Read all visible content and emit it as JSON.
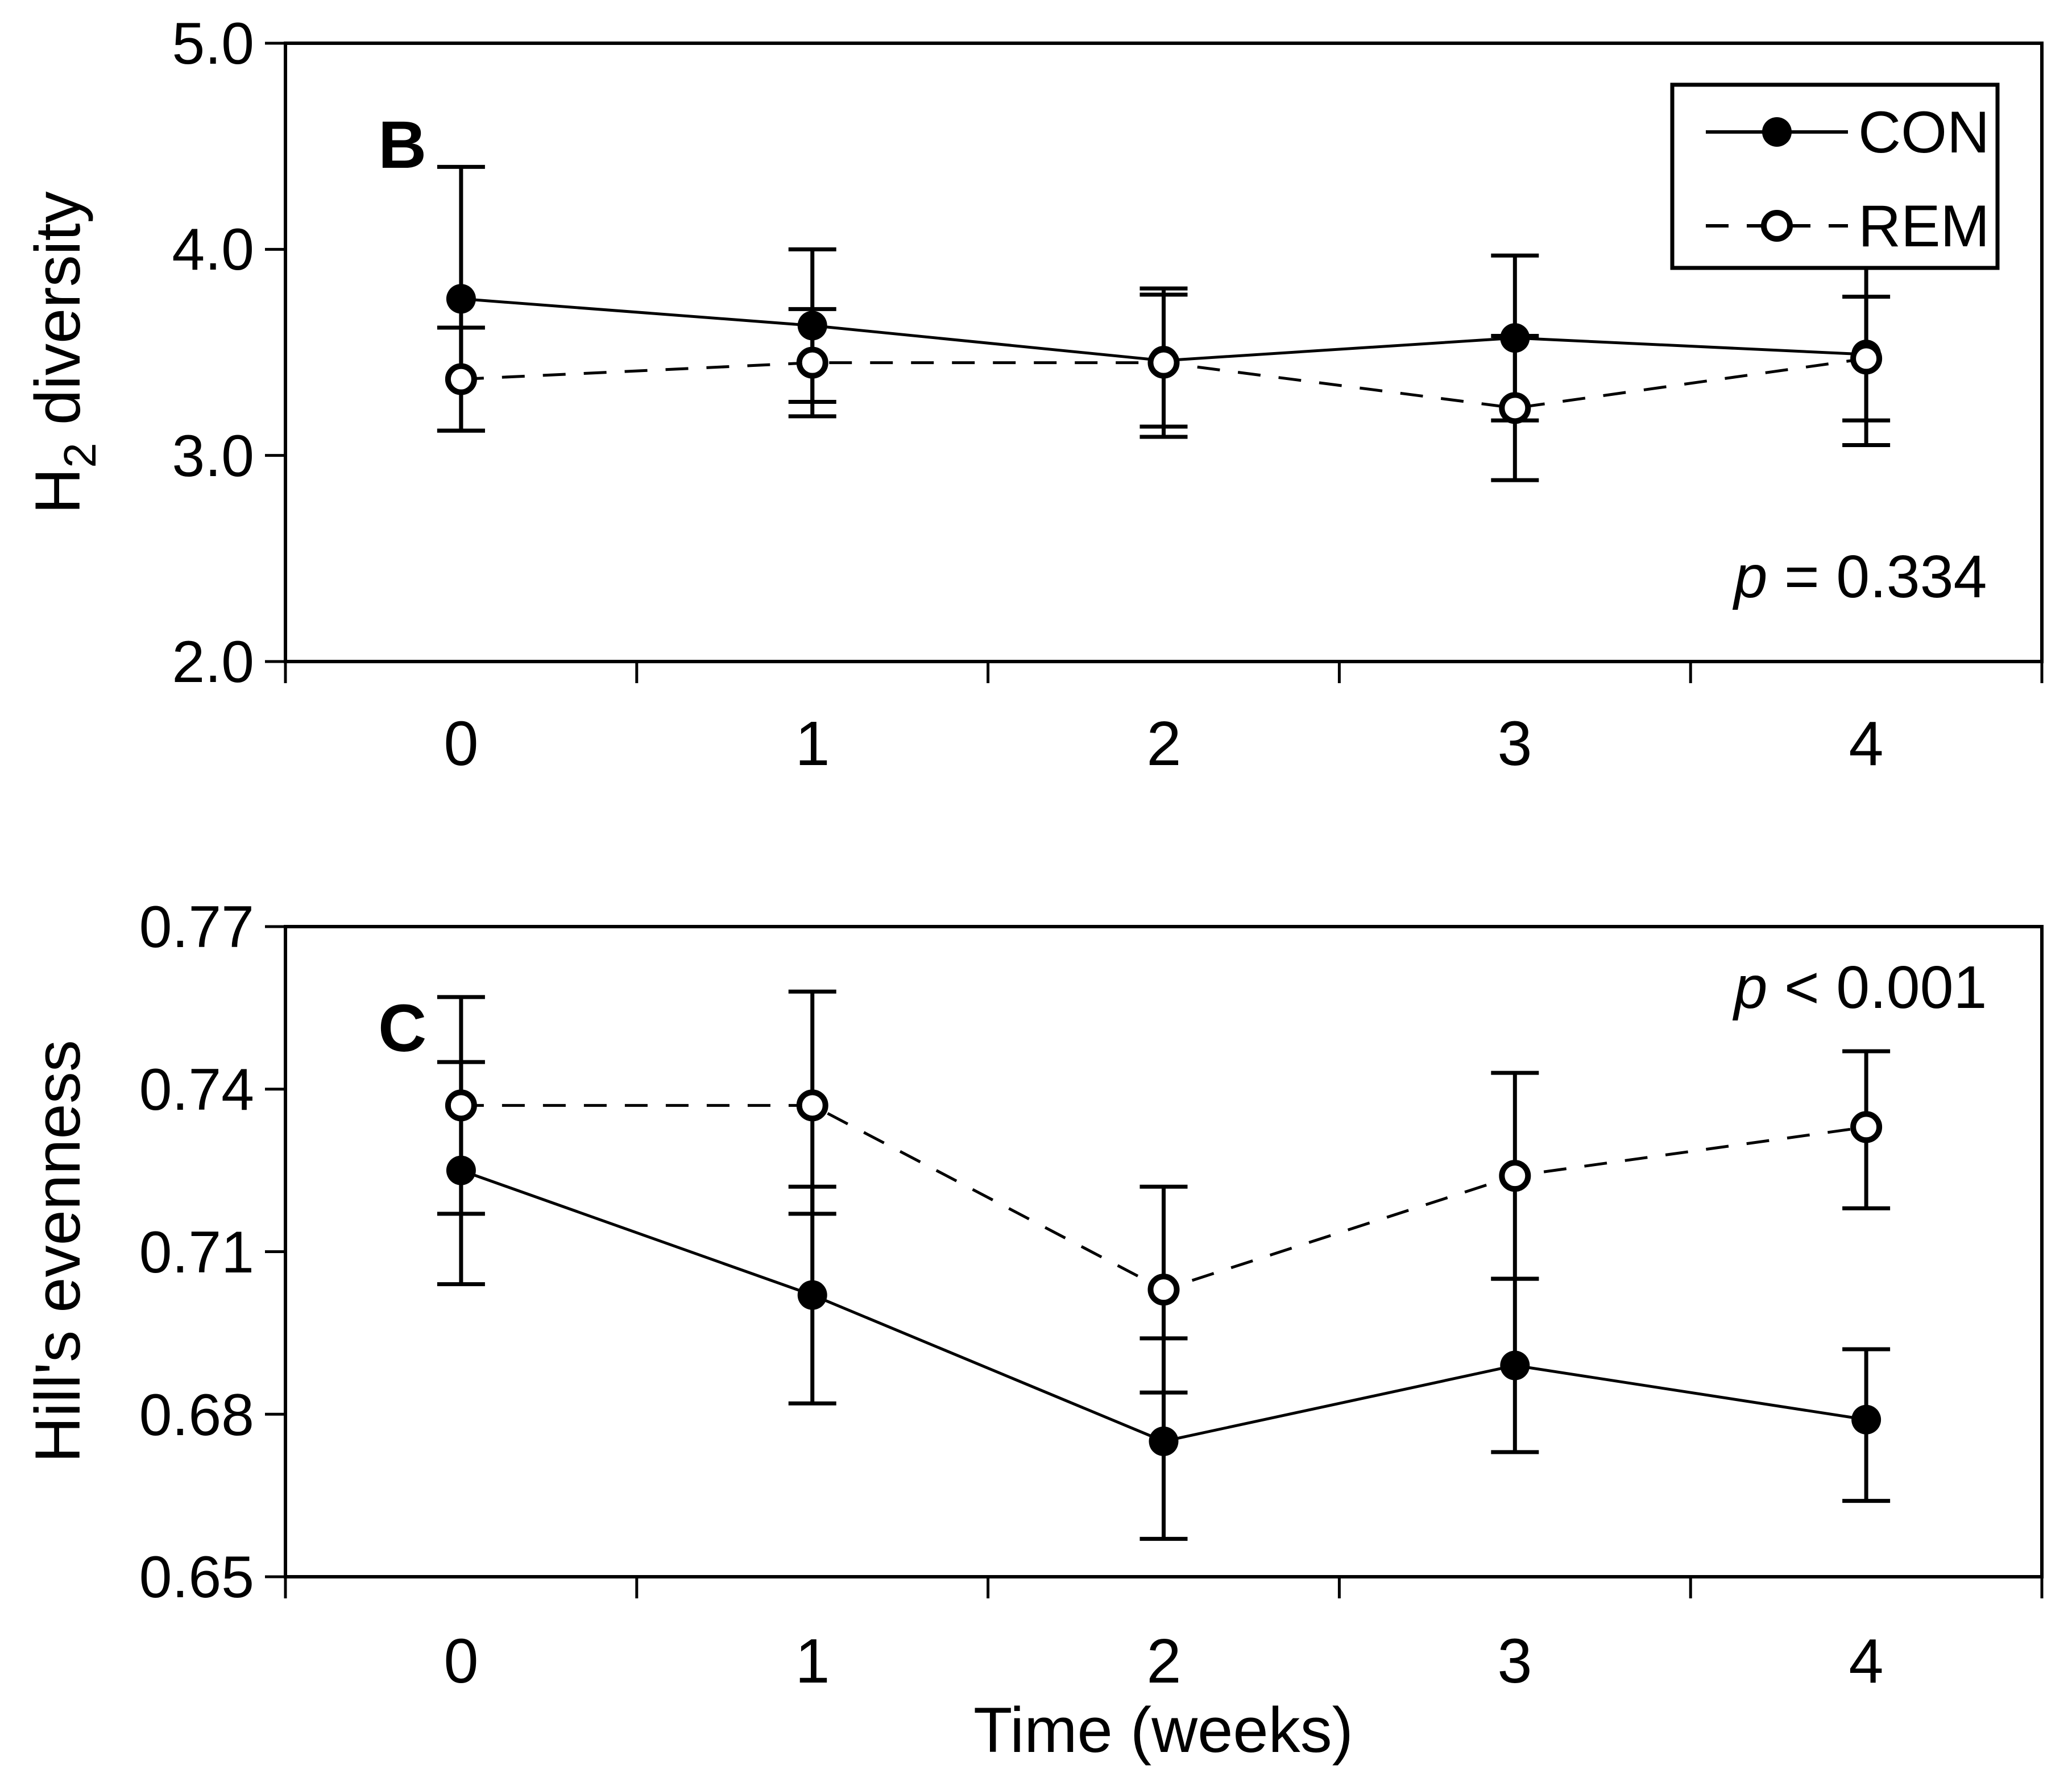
{
  "figure": {
    "background": "#ffffff",
    "foreground": "#000000",
    "panel_count": 2
  },
  "chart_data": [
    {
      "type": "line",
      "panel_label": "B",
      "ylabel": "H2 diversity",
      "ylabel_base": "H",
      "ylabel_sub": "2",
      "ylabel_rest": " diversity",
      "xlabel": "",
      "x": [
        0,
        1,
        2,
        3,
        4
      ],
      "xticklabels": [
        "0",
        "1",
        "2",
        "3",
        "4"
      ],
      "ylim": [
        2.0,
        5.0
      ],
      "yticks": [
        5.0,
        4.0,
        3.0,
        2.0
      ],
      "ytick_labels": [
        "5.0",
        "4.0",
        "3.0",
        "2.0"
      ],
      "grid": false,
      "annotation": {
        "var": "p",
        "rest": " = 0.334"
      },
      "legend": {
        "visible": true,
        "position": "top-right"
      },
      "series": [
        {
          "name": "CON",
          "line": "solid",
          "marker": "filled-circle",
          "color": "#000000",
          "values": [
            3.76,
            3.63,
            3.46,
            3.57,
            3.49
          ],
          "err_lo": [
            3.12,
            3.26,
            3.14,
            3.17,
            3.05
          ],
          "err_hi": [
            4.4,
            4.0,
            3.78,
            3.97,
            3.93
          ]
        },
        {
          "name": "REM",
          "line": "dashed",
          "marker": "open-circle",
          "color": "#000000",
          "values": [
            3.37,
            3.45,
            3.45,
            3.23,
            3.47
          ],
          "err_lo": [
            3.12,
            3.19,
            3.09,
            2.88,
            3.17
          ],
          "err_hi": [
            3.62,
            3.71,
            3.81,
            3.58,
            3.77
          ]
        }
      ]
    },
    {
      "type": "line",
      "panel_label": "C",
      "ylabel": "Hill's evenness",
      "ylabel_base": "Hill's evenness",
      "ylabel_sub": "",
      "ylabel_rest": "",
      "xlabel": "Time (weeks)",
      "x": [
        0,
        1,
        2,
        3,
        4
      ],
      "xticklabels": [
        "0",
        "1",
        "2",
        "3",
        "4"
      ],
      "ylim": [
        0.65,
        0.77
      ],
      "yticks": [
        0.77,
        0.74,
        0.71,
        0.68,
        0.65
      ],
      "ytick_labels": [
        "0.77",
        "0.74",
        "0.71",
        "0.68",
        "0.65"
      ],
      "grid": false,
      "annotation": {
        "var": "p",
        "rest": " < 0.001"
      },
      "legend": {
        "visible": false,
        "position": ""
      },
      "series": [
        {
          "name": "CON",
          "line": "solid",
          "marker": "filled-circle",
          "color": "#000000",
          "values": [
            0.725,
            0.702,
            0.675,
            0.689,
            0.679
          ],
          "err_lo": [
            0.704,
            0.682,
            0.657,
            0.673,
            0.664
          ],
          "err_hi": [
            0.745,
            0.722,
            0.694,
            0.705,
            0.692
          ]
        },
        {
          "name": "REM",
          "line": "dashed",
          "marker": "open-circle",
          "color": "#000000",
          "values": [
            0.737,
            0.737,
            0.703,
            0.724,
            0.733
          ],
          "err_lo": [
            0.717,
            0.717,
            0.684,
            0.705,
            0.718
          ],
          "err_hi": [
            0.757,
            0.758,
            0.722,
            0.743,
            0.747
          ]
        }
      ]
    }
  ]
}
